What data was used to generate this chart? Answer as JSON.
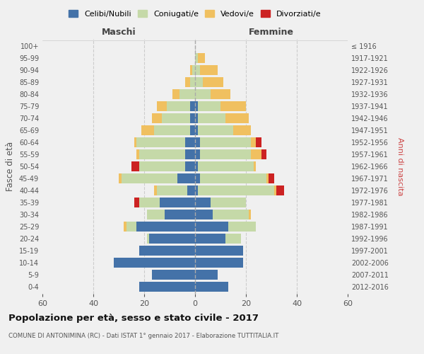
{
  "age_groups": [
    "0-4",
    "5-9",
    "10-14",
    "15-19",
    "20-24",
    "25-29",
    "30-34",
    "35-39",
    "40-44",
    "45-49",
    "50-54",
    "55-59",
    "60-64",
    "65-69",
    "70-74",
    "75-79",
    "80-84",
    "85-89",
    "90-94",
    "95-99",
    "100+"
  ],
  "birth_years": [
    "2012-2016",
    "2007-2011",
    "2002-2006",
    "1997-2001",
    "1992-1996",
    "1987-1991",
    "1982-1986",
    "1977-1981",
    "1972-1976",
    "1967-1971",
    "1962-1966",
    "1957-1961",
    "1952-1956",
    "1947-1951",
    "1942-1946",
    "1937-1941",
    "1932-1936",
    "1927-1931",
    "1922-1926",
    "1917-1921",
    "≤ 1916"
  ],
  "maschi": {
    "celibi": [
      22,
      17,
      32,
      22,
      18,
      23,
      12,
      14,
      3,
      7,
      4,
      4,
      4,
      2,
      2,
      2,
      0,
      0,
      0,
      0,
      0
    ],
    "coniugati": [
      0,
      0,
      0,
      0,
      1,
      4,
      7,
      8,
      12,
      22,
      18,
      18,
      19,
      14,
      11,
      9,
      6,
      2,
      1,
      0,
      0
    ],
    "vedovi": [
      0,
      0,
      0,
      0,
      0,
      1,
      0,
      0,
      1,
      1,
      0,
      1,
      1,
      5,
      4,
      4,
      3,
      2,
      1,
      0,
      0
    ],
    "divorziati": [
      0,
      0,
      0,
      0,
      0,
      0,
      0,
      2,
      0,
      0,
      3,
      0,
      0,
      0,
      0,
      0,
      0,
      0,
      0,
      0,
      0
    ]
  },
  "femmine": {
    "nubili": [
      13,
      9,
      19,
      19,
      12,
      13,
      7,
      6,
      1,
      2,
      1,
      2,
      2,
      1,
      1,
      1,
      0,
      0,
      0,
      0,
      0
    ],
    "coniugate": [
      0,
      0,
      0,
      0,
      6,
      11,
      14,
      14,
      30,
      26,
      22,
      20,
      20,
      14,
      11,
      9,
      6,
      3,
      2,
      1,
      0
    ],
    "vedove": [
      0,
      0,
      0,
      0,
      0,
      0,
      1,
      0,
      1,
      1,
      1,
      4,
      2,
      7,
      9,
      10,
      8,
      8,
      7,
      3,
      0
    ],
    "divorziate": [
      0,
      0,
      0,
      0,
      0,
      0,
      0,
      0,
      3,
      2,
      0,
      2,
      2,
      0,
      0,
      0,
      0,
      0,
      0,
      0,
      0
    ]
  },
  "colors": {
    "celibi": "#4472a8",
    "coniugati": "#c5d9a8",
    "vedovi": "#f0c060",
    "divorziati": "#cc2222"
  },
  "xlim": 60,
  "title": "Popolazione per età, sesso e stato civile - 2017",
  "subtitle": "COMUNE DI ANTONIMINA (RC) - Dati ISTAT 1° gennaio 2017 - Elaborazione TUTTITALIA.IT",
  "ylabel": "Fasce di età",
  "ylabel_right": "Anni di nascita",
  "legend_labels": [
    "Celibi/Nubili",
    "Coniugati/e",
    "Vedovi/e",
    "Divorziati/e"
  ],
  "maschi_label": "Maschi",
  "femmine_label": "Femmine",
  "background_color": "#f0f0f0"
}
